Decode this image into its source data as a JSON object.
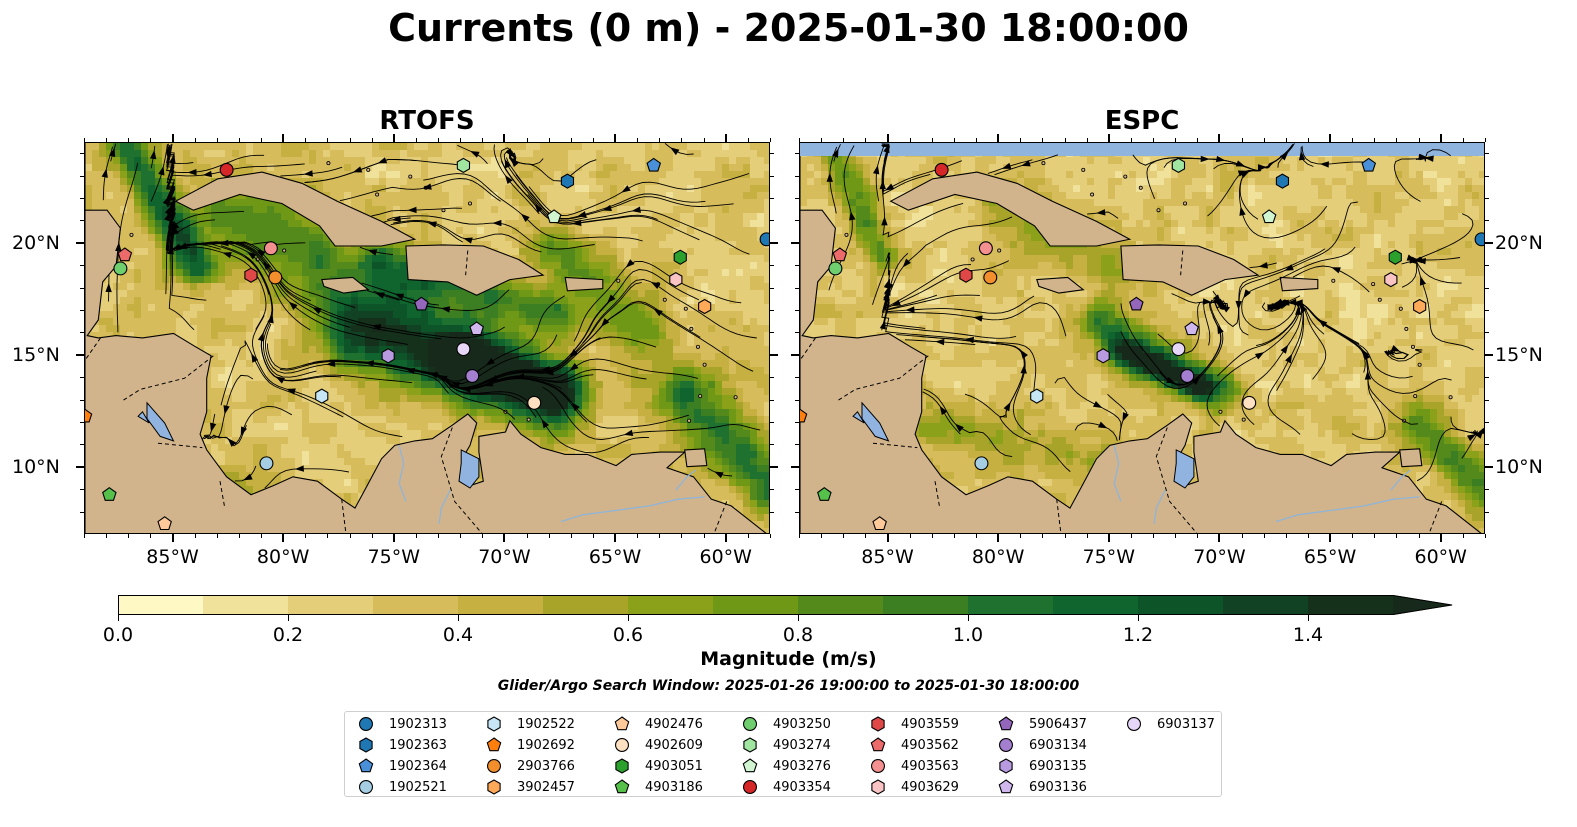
{
  "figure": {
    "title": "Currents (0 m) - 2025-01-30 18:00:00",
    "panels": [
      {
        "title": "RTOFS"
      },
      {
        "title": "ESPC"
      }
    ],
    "colorbar": {
      "label": "Magnitude (m/s)",
      "ticks": [
        "0.0",
        "0.2",
        "0.4",
        "0.6",
        "0.8",
        "1.0",
        "1.2",
        "1.4"
      ],
      "range": [
        0,
        1.5
      ],
      "extend": "max",
      "colors": [
        "#fef9c4",
        "#f1e29b",
        "#e4ce79",
        "#d7bc5b",
        "#c6b041",
        "#a8a42a",
        "#8ca11a",
        "#6f9816",
        "#54891b",
        "#3c7e22",
        "#1f7130",
        "#10642e",
        "#0d5529",
        "#114223",
        "#15301b",
        "#17291a"
      ]
    },
    "x_ticks": [
      "85°W",
      "80°W",
      "75°W",
      "70°W",
      "65°W",
      "60°W"
    ],
    "y_ticks": [
      "20°N",
      "15°N",
      "10°N"
    ],
    "search_window": "Glider/Argo Search Window: 2025-01-26 19:00:00 to 2025-01-30 18:00:00"
  },
  "map_colors": {
    "land": "#d2b48c",
    "lakes": "#90b3e0",
    "rivers": "#8fb4d8",
    "ocean_low": "#f5e9a8"
  },
  "legend": [
    {
      "id": "1902313",
      "color": "#1f77b4",
      "shape": "circle"
    },
    {
      "id": "1902363",
      "color": "#1f77b4",
      "shape": "hexagon"
    },
    {
      "id": "1902364",
      "color": "#4a90d9",
      "shape": "pentagon"
    },
    {
      "id": "1902521",
      "color": "#a6cee3",
      "shape": "circle"
    },
    {
      "id": "1902522",
      "color": "#c6e6f5",
      "shape": "hexagon"
    },
    {
      "id": "1902692",
      "color": "#ff7f0e",
      "shape": "pentagon"
    },
    {
      "id": "2903766",
      "color": "#f28e2b",
      "shape": "circle"
    },
    {
      "id": "3902457",
      "color": "#ffa959",
      "shape": "hexagon"
    },
    {
      "id": "4902476",
      "color": "#ffc999",
      "shape": "pentagon"
    },
    {
      "id": "4902609",
      "color": "#ffe0c0",
      "shape": "circle"
    },
    {
      "id": "4903051",
      "color": "#2ca02c",
      "shape": "hexagon"
    },
    {
      "id": "4903186",
      "color": "#55c04a",
      "shape": "pentagon"
    },
    {
      "id": "4903250",
      "color": "#6fcf6f",
      "shape": "circle"
    },
    {
      "id": "4903274",
      "color": "#a0e6a0",
      "shape": "hexagon"
    },
    {
      "id": "4903276",
      "color": "#d0f5d0",
      "shape": "pentagon"
    },
    {
      "id": "4903354",
      "color": "#d62728",
      "shape": "circle"
    },
    {
      "id": "4903559",
      "color": "#e04848",
      "shape": "hexagon"
    },
    {
      "id": "4903562",
      "color": "#ec6a6a",
      "shape": "pentagon"
    },
    {
      "id": "4903563",
      "color": "#f59090",
      "shape": "circle"
    },
    {
      "id": "4903629",
      "color": "#fbc4c4",
      "shape": "hexagon"
    },
    {
      "id": "5906437",
      "color": "#9467bd",
      "shape": "pentagon"
    },
    {
      "id": "6903134",
      "color": "#a47fd0",
      "shape": "circle"
    },
    {
      "id": "6903135",
      "color": "#b89ae0",
      "shape": "hexagon"
    },
    {
      "id": "6903136",
      "color": "#d0b8ee",
      "shape": "pentagon"
    },
    {
      "id": "6903137",
      "color": "#e6d7f8",
      "shape": "circle"
    }
  ],
  "float_positions": [
    {
      "id": "4903354",
      "lon": -82.6,
      "lat": 23.3
    },
    {
      "id": "4903562",
      "lon": -87.2,
      "lat": 19.5
    },
    {
      "id": "4903250",
      "lon": -87.4,
      "lat": 18.9
    },
    {
      "id": "4903563",
      "lon": -80.6,
      "lat": 19.8
    },
    {
      "id": "4903559",
      "lon": -81.5,
      "lat": 18.6
    },
    {
      "id": "2903766",
      "lon": -80.4,
      "lat": 18.5
    },
    {
      "id": "4903274",
      "lon": -71.9,
      "lat": 23.5
    },
    {
      "id": "1902363",
      "lon": -67.2,
      "lat": 22.8
    },
    {
      "id": "4903276",
      "lon": -67.8,
      "lat": 21.2
    },
    {
      "id": "1902364",
      "lon": -63.3,
      "lat": 23.5
    },
    {
      "id": "4903051",
      "lon": -62.1,
      "lat": 19.4
    },
    {
      "id": "1902313",
      "lon": -58.2,
      "lat": 20.2
    },
    {
      "id": "4903629",
      "lon": -62.3,
      "lat": 18.4
    },
    {
      "id": "3902457",
      "lon": -61.0,
      "lat": 17.2
    },
    {
      "id": "5906437",
      "lon": -73.8,
      "lat": 17.3
    },
    {
      "id": "6903136",
      "lon": -71.3,
      "lat": 16.2
    },
    {
      "id": "6903135",
      "lon": -75.3,
      "lat": 15.0
    },
    {
      "id": "6903137",
      "lon": -71.9,
      "lat": 15.3
    },
    {
      "id": "6903134",
      "lon": -71.5,
      "lat": 14.1
    },
    {
      "id": "4902609",
      "lon": -68.7,
      "lat": 12.9
    },
    {
      "id": "1902522",
      "lon": -78.3,
      "lat": 13.2
    },
    {
      "id": "1902521",
      "lon": -80.8,
      "lat": 10.2
    },
    {
      "id": "1902692",
      "lon": -89.0,
      "lat": 12.3
    },
    {
      "id": "4903186",
      "lon": -87.9,
      "lat": 8.8
    },
    {
      "id": "4902476",
      "lon": -85.4,
      "lat": 7.5
    }
  ]
}
